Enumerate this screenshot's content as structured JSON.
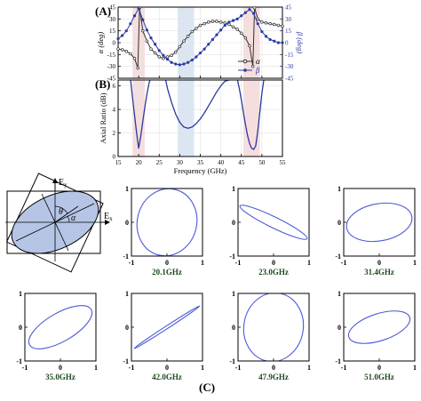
{
  "panel_labels": {
    "a": "(A)",
    "b": "(B)",
    "c": "(C)"
  },
  "colors": {
    "alpha": "#303030",
    "beta": "#2b3a9e",
    "ar": "#2b3a9e",
    "ellipse": "#4a5ad6",
    "freq_label": "#1d4a1d",
    "shade_pink": "#f6dede",
    "shade_blue": "#dce6f3",
    "diagram_fill": "#b6c5e6"
  },
  "chart_data": [
    {
      "type": "line",
      "id": "A",
      "title": "",
      "xlim": [
        15,
        55
      ],
      "ylabel_left": "α (deg)",
      "ylabel_right": "β (deg)",
      "ylim": [
        -45,
        45
      ],
      "yticks": [
        "-45",
        "-30",
        "-15",
        "0",
        "15",
        "30",
        "45"
      ],
      "legend": [
        "α",
        "β"
      ],
      "legend_position": "bottom-right",
      "shaded_bands": [
        {
          "from": 18.5,
          "to": 21.5,
          "color": "pink"
        },
        {
          "from": 29.5,
          "to": 33.5,
          "color": "blue"
        },
        {
          "from": 45.5,
          "to": 49.5,
          "color": "pink"
        }
      ],
      "series": [
        {
          "name": "α",
          "x": [
            15,
            16,
            17,
            18,
            19,
            19.8,
            20.2,
            21,
            22,
            23,
            24,
            25,
            26,
            27,
            28,
            29,
            30,
            31,
            32,
            33,
            34,
            35,
            36,
            37,
            38,
            39,
            40,
            41,
            42,
            43,
            44,
            45,
            46,
            47,
            47.8,
            48.2,
            49,
            50,
            51,
            52,
            53,
            54,
            55
          ],
          "values": [
            -8,
            -9,
            -11,
            -14,
            -20,
            -32,
            44,
            15,
            2,
            -8,
            -13,
            -18,
            -20,
            -18,
            -16,
            -12,
            -5,
            2,
            8,
            14,
            18,
            22,
            24,
            26,
            27,
            27,
            26,
            25,
            23,
            20,
            17,
            12,
            6,
            -4,
            -30,
            44,
            30,
            26,
            25,
            24,
            23,
            22,
            21
          ]
        },
        {
          "name": "β",
          "x": [
            15,
            16,
            17,
            18,
            19,
            20,
            21,
            22,
            23,
            24,
            25,
            26,
            27,
            28,
            29,
            30,
            31,
            32,
            33,
            34,
            35,
            36,
            37,
            38,
            39,
            40,
            41,
            42,
            43,
            44,
            45,
            46,
            47,
            48,
            49,
            50,
            51,
            52,
            53,
            54,
            55
          ],
          "values": [
            5,
            9,
            15,
            24,
            34,
            43,
            29,
            16,
            6,
            -2,
            -10,
            -16,
            -21,
            -25,
            -27,
            -28,
            -27,
            -25,
            -22,
            -18,
            -13,
            -8,
            -2,
            4,
            10,
            16,
            22,
            26,
            28,
            30,
            34,
            38,
            42,
            37,
            24,
            14,
            8,
            4,
            2,
            0,
            0
          ]
        }
      ]
    },
    {
      "type": "line",
      "id": "B",
      "title": "",
      "xlabel": "Frequency (GHz)",
      "ylabel": "Axial Ratio (dB)",
      "xlim": [
        15,
        55
      ],
      "xticks": [
        "15",
        "20",
        "25",
        "30",
        "35",
        "40",
        "45",
        "50",
        "55"
      ],
      "ylim": [
        0,
        6.5
      ],
      "yticks": [
        "0",
        "2",
        "4",
        "6"
      ],
      "shaded_bands": [
        {
          "from": 18.5,
          "to": 21.5,
          "color": "pink"
        },
        {
          "from": 29.5,
          "to": 33.5,
          "color": "blue"
        },
        {
          "from": 45.5,
          "to": 49.5,
          "color": "pink"
        }
      ],
      "series": [
        {
          "name": "",
          "segments": [
            {
              "x": [
                18.0,
                18.5,
                19.0,
                19.5,
                20.0,
                20.5,
                21.0,
                21.5,
                22.0,
                22.5,
                23.0
              ],
              "values": [
                6.6,
                5.0,
                3.5,
                2.0,
                0.7,
                1.7,
                3.0,
                4.2,
                5.3,
                6.2,
                6.8
              ]
            },
            {
              "x": [
                26.5,
                27.0,
                28.0,
                29.0,
                30.0,
                31.0,
                32.0,
                33.0,
                34.0,
                35.0,
                36.0,
                37.0,
                38.0,
                39.0,
                40.0,
                41.0,
                42.0,
                42.5
              ],
              "values": [
                6.6,
                5.8,
                4.6,
                3.6,
                2.9,
                2.5,
                2.4,
                2.5,
                2.8,
                3.2,
                3.7,
                4.3,
                4.9,
                5.5,
                6.0,
                6.4,
                6.5,
                6.6
              ]
            },
            {
              "x": [
                44.0,
                44.5,
                45.0,
                45.5,
                46.0,
                46.5,
                47.0,
                47.5,
                48.0,
                48.5,
                49.0,
                49.5,
                50.0,
                50.5
              ],
              "values": [
                6.6,
                5.8,
                4.8,
                3.7,
                2.7,
                1.8,
                1.1,
                0.7,
                0.6,
                0.9,
                2.2,
                3.8,
                5.4,
                6.6
              ]
            }
          ]
        }
      ]
    },
    {
      "type": "scatter",
      "id": "C",
      "description_kind": "polarization-ellipses",
      "xlim": [
        -1,
        1
      ],
      "ylim": [
        -1,
        1
      ],
      "ticks": [
        "-1",
        "0",
        "1"
      ],
      "ellipses": [
        {
          "label": "20.1GHz",
          "a": 0.95,
          "b": 0.88,
          "tilt_deg": 75
        },
        {
          "label": "23.0GHz",
          "a": 1.05,
          "b": 0.16,
          "tilt_deg": -26
        },
        {
          "label": "31.4GHz",
          "a": 0.93,
          "b": 0.55,
          "tilt_deg": 10
        },
        {
          "label": "35.0GHz",
          "a": 1.0,
          "b": 0.42,
          "tilt_deg": 30
        },
        {
          "label": "42.0GHz",
          "a": 1.1,
          "b": 0.04,
          "tilt_deg": 33
        },
        {
          "label": "47.9GHz",
          "a": 0.97,
          "b": 0.88,
          "tilt_deg": 80
        },
        {
          "label": "51.0GHz",
          "a": 0.9,
          "b": 0.4,
          "tilt_deg": 18
        }
      ]
    }
  ],
  "diagram": {
    "ey_label": "E",
    "ey_sub": "y",
    "ex_label": "E",
    "ex_sub": "x",
    "theta": "θ",
    "alpha": "α",
    "tilt_deg": 25
  }
}
